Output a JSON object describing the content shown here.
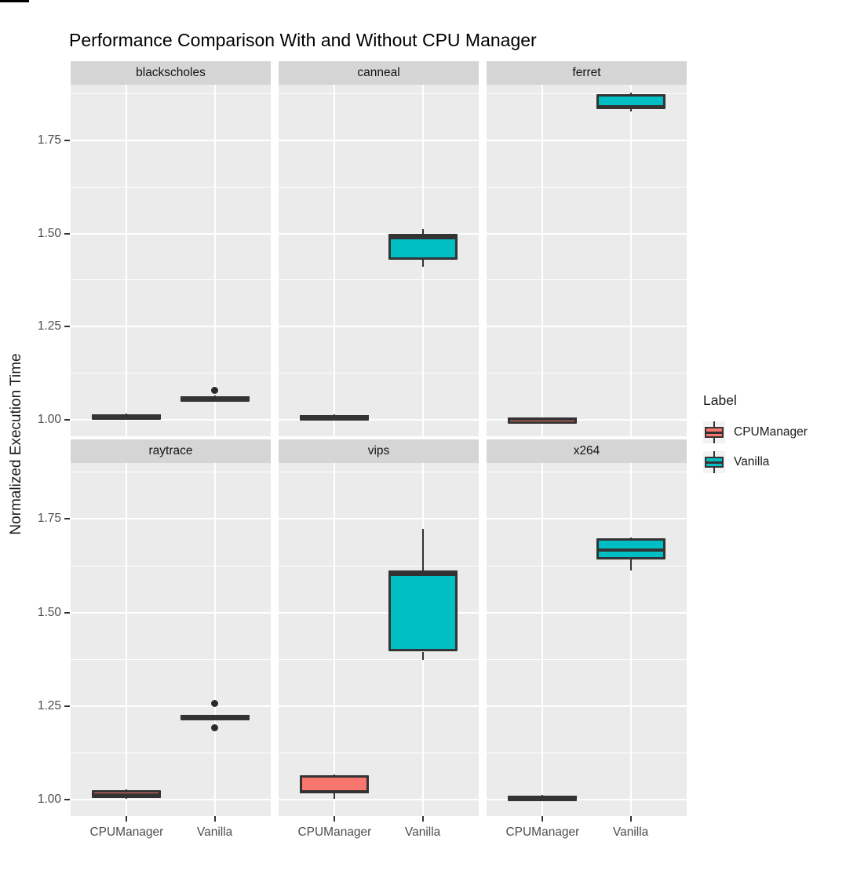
{
  "chart_data": {
    "type": "boxplot",
    "title": "Performance Comparison With and Without CPU Manager",
    "ylabel": "Normalized Execution Time",
    "xlabel": "",
    "facet_layout": {
      "rows": 2,
      "cols": 3
    },
    "facets": [
      "blackscholes",
      "canneal",
      "ferret",
      "raytrace",
      "vips",
      "x264"
    ],
    "categories": [
      "CPUManager",
      "Vanilla"
    ],
    "y_ticks": [
      "1.00",
      "1.25",
      "1.50",
      "1.75"
    ],
    "ylim": [
      0.955,
      1.9
    ],
    "grid": "white major and minor horizontal gridlines on gray panels, vertical gridlines at category centers",
    "legend_position": "right",
    "legend": {
      "title": "Label",
      "entries": [
        {
          "label": "CPUManager",
          "color": "#F8766D"
        },
        {
          "label": "Vanilla",
          "color": "#00BFC4"
        }
      ]
    },
    "colors": {
      "panel_bg": "#EBEBEB",
      "strip_bg": "#D5D5D5",
      "gridline": "#FFFFFF",
      "box_outline": "#333333",
      "tick_text": "#4D4D4D",
      "text": "#1A1A1A",
      "cpumanager_fill": "#F8766D",
      "vanilla_fill": "#00BFC4"
    },
    "boxes": [
      {
        "facet": "blackscholes",
        "group": "CPUManager",
        "min": 1.005,
        "q1": 1.008,
        "median": 1.011,
        "q3": 1.014,
        "max": 1.016,
        "outliers": []
      },
      {
        "facet": "blackscholes",
        "group": "Vanilla",
        "min": 1.05,
        "q1": 1.053,
        "median": 1.058,
        "q3": 1.062,
        "max": 1.065,
        "outliers": [
          1.078
        ]
      },
      {
        "facet": "canneal",
        "group": "CPUManager",
        "min": 1.0,
        "q1": 1.003,
        "median": 1.008,
        "q3": 1.013,
        "max": 1.015,
        "outliers": []
      },
      {
        "facet": "canneal",
        "group": "Vanilla",
        "min": 1.41,
        "q1": 1.43,
        "median": 1.488,
        "q3": 1.5,
        "max": 1.513,
        "outliers": []
      },
      {
        "facet": "ferret",
        "group": "CPUManager",
        "min": 0.998,
        "q1": 1.0,
        "median": 1.002,
        "q3": 1.004,
        "max": 1.005,
        "outliers": []
      },
      {
        "facet": "ferret",
        "group": "Vanilla",
        "min": 1.828,
        "q1": 1.835,
        "median": 1.841,
        "q3": 1.875,
        "max": 1.878,
        "outliers": []
      },
      {
        "facet": "raytrace",
        "group": "CPUManager",
        "min": 1.0,
        "q1": 1.003,
        "median": 1.012,
        "q3": 1.025,
        "max": 1.027,
        "outliers": []
      },
      {
        "facet": "raytrace",
        "group": "Vanilla",
        "min": 1.215,
        "q1": 1.217,
        "median": 1.221,
        "q3": 1.225,
        "max": 1.227,
        "outliers": [
          1.256,
          1.192
        ]
      },
      {
        "facet": "vips",
        "group": "CPUManager",
        "min": 1.0,
        "q1": 1.015,
        "median": 1.021,
        "q3": 1.065,
        "max": 1.067,
        "outliers": []
      },
      {
        "facet": "vips",
        "group": "Vanilla",
        "min": 1.373,
        "q1": 1.395,
        "median": 1.602,
        "q3": 1.612,
        "max": 1.723,
        "outliers": []
      },
      {
        "facet": "x264",
        "group": "CPUManager",
        "min": 1.0,
        "q1": 1.002,
        "median": 1.006,
        "q3": 1.009,
        "max": 1.011,
        "outliers": []
      },
      {
        "facet": "x264",
        "group": "Vanilla",
        "min": 1.612,
        "q1": 1.641,
        "median": 1.667,
        "q3": 1.699,
        "max": 1.701,
        "outliers": []
      }
    ]
  }
}
